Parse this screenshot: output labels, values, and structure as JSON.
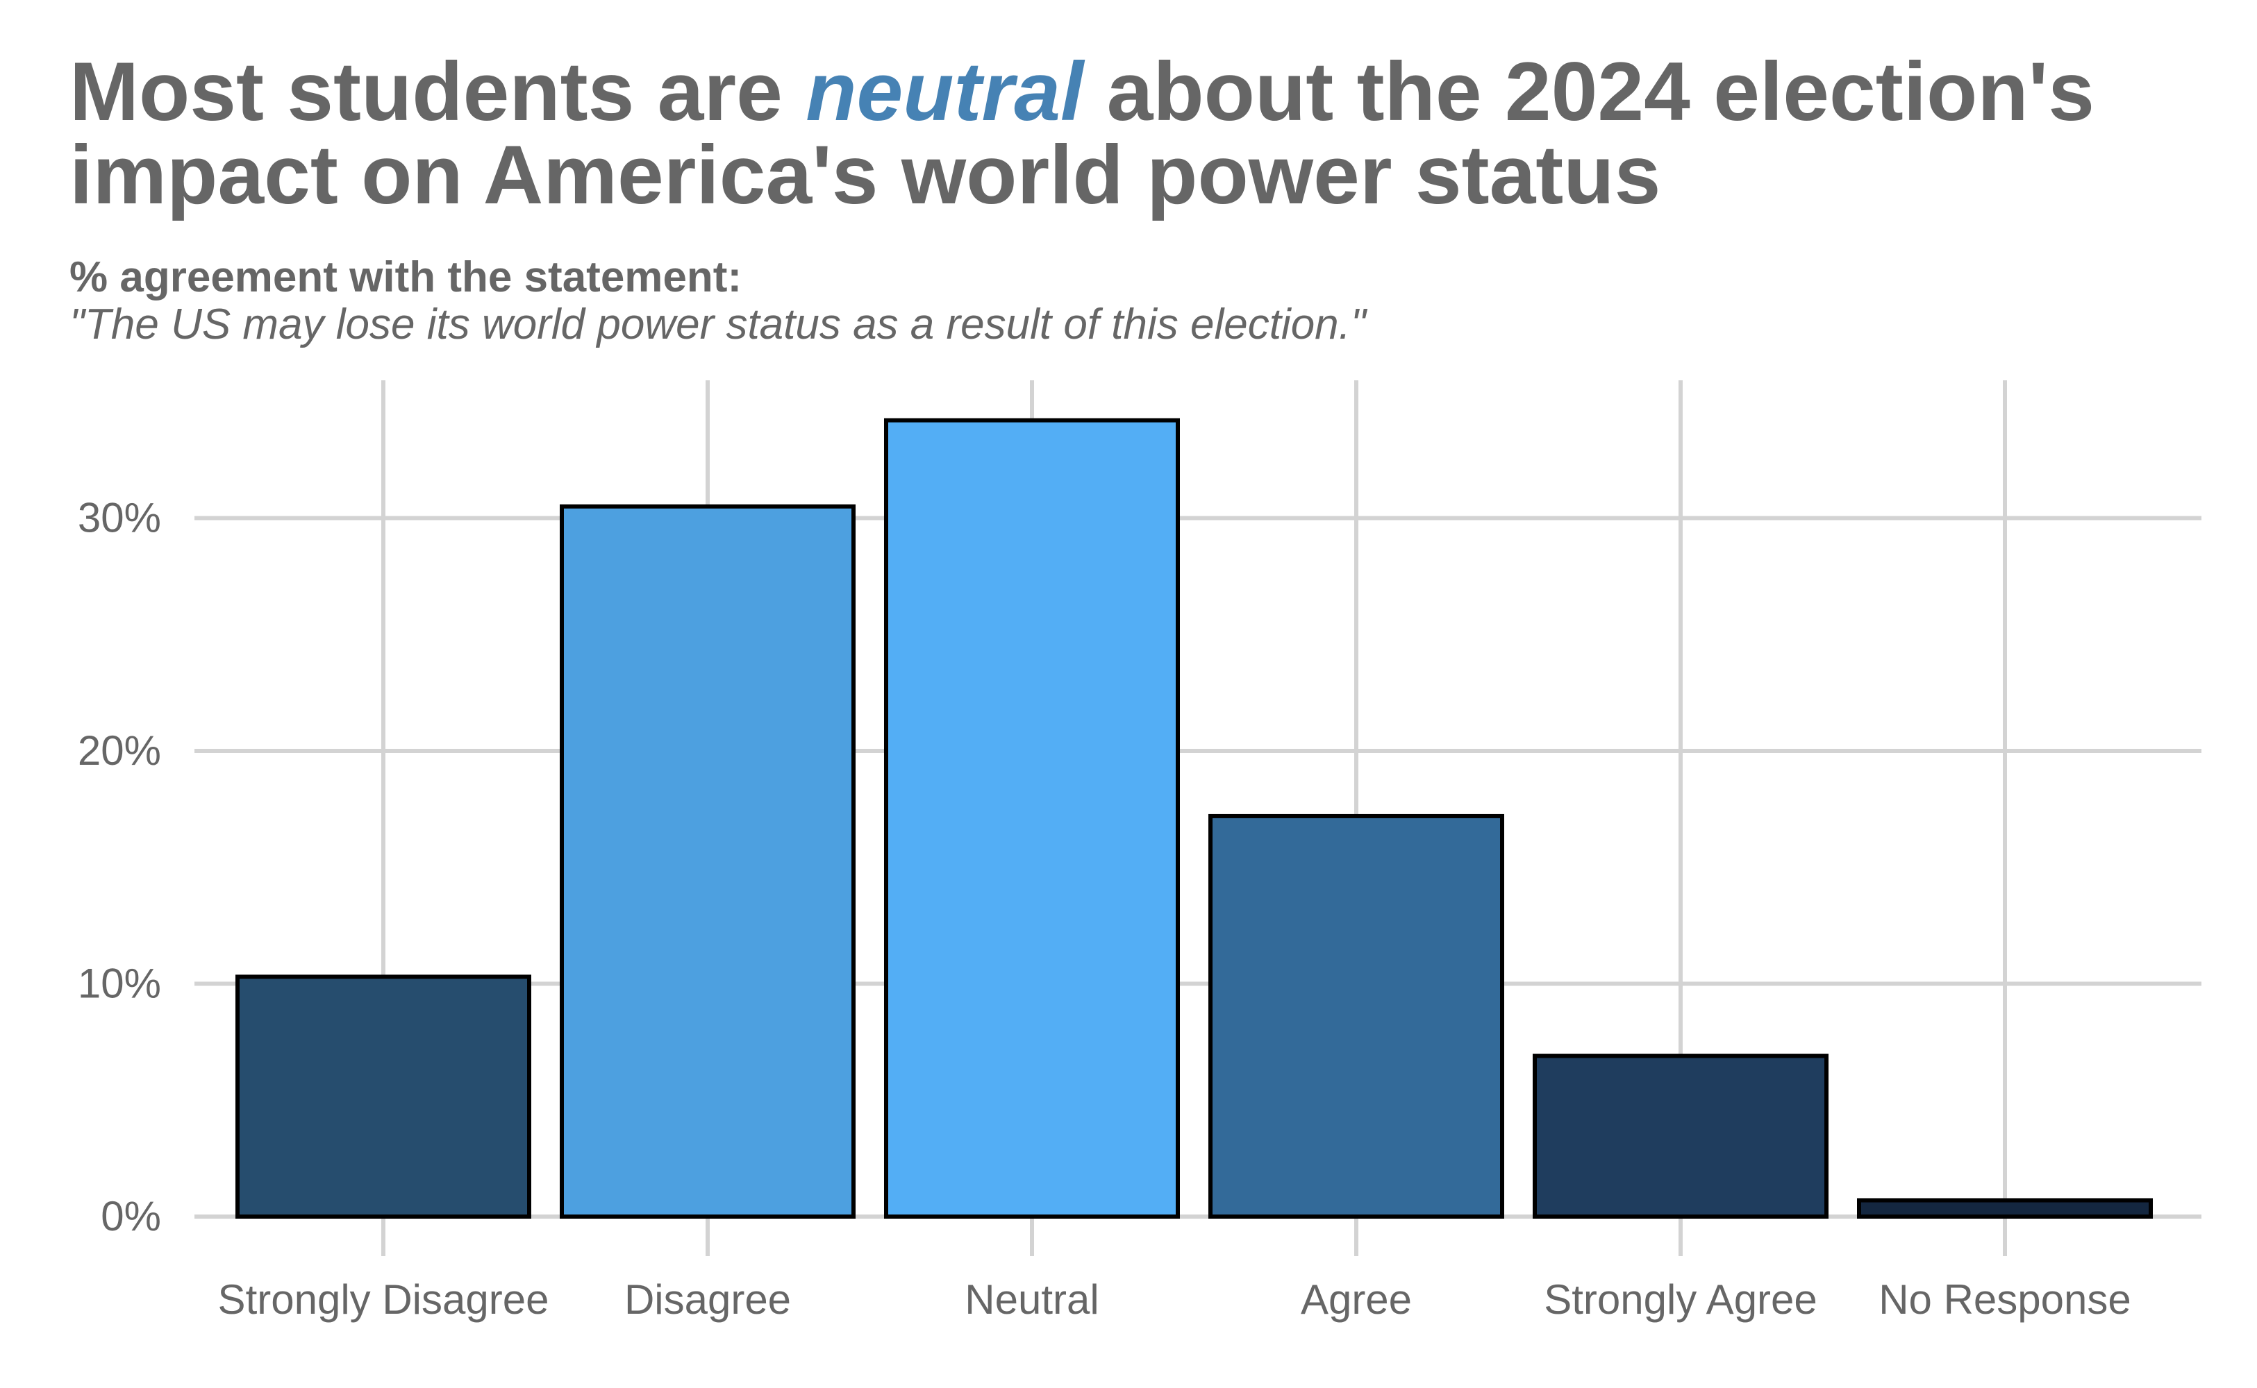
{
  "title": {
    "prefix": "Most students are ",
    "highlight": "neutral",
    "line1_suffix": " about the 2024 election's",
    "line2": "impact on America's world power status"
  },
  "subtitle": "% agreement with the statement:",
  "statement": "\"The US may lose its world power status as a result of this election.\"",
  "colors": {
    "title_text": "#666666",
    "highlight": "#4682B4",
    "grid": "#d3d3d3",
    "bar_outline": "#000000"
  },
  "chart_data": {
    "type": "bar",
    "categories": [
      "Strongly Disagree",
      "Disagree",
      "Neutral",
      "Agree",
      "Strongly Agree",
      "No Response"
    ],
    "values": [
      10.3,
      30.5,
      34.2,
      17.2,
      6.9,
      0.7
    ],
    "colors": [
      "#264D6E",
      "#4DA0E0",
      "#53AEF5",
      "#336A99",
      "#1F3D5E",
      "#142740"
    ],
    "yticks": [
      0,
      10,
      20,
      30
    ],
    "ytick_labels": [
      "0%",
      "10%",
      "20%",
      "30%"
    ],
    "ylim": [
      0,
      36
    ],
    "grid": true,
    "legend": false
  }
}
